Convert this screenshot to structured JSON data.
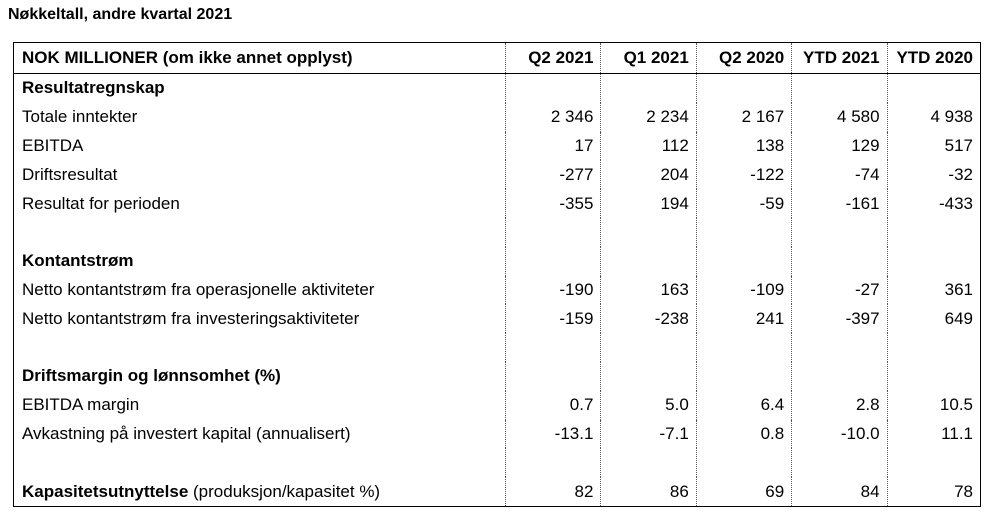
{
  "title": "Nøkkeltall, andre kvartal 2021",
  "header": {
    "label": "NOK MILLIONER (om ikke annet opplyst)",
    "columns": [
      "Q2 2021",
      "Q1 2021",
      "Q2 2020",
      "YTD 2021",
      "YTD 2020"
    ]
  },
  "sections": {
    "resultat": {
      "heading": "Resultatregnskap",
      "rows": [
        {
          "label": "Totale inntekter",
          "values": [
            "2 346",
            "2 234",
            "2 167",
            "4 580",
            "4 938"
          ]
        },
        {
          "label": "EBITDA",
          "values": [
            "17",
            "112",
            "138",
            "129",
            "517"
          ]
        },
        {
          "label": "Driftsresultat",
          "values": [
            "-277",
            "204",
            "-122",
            "-74",
            "-32"
          ]
        },
        {
          "label": "Resultat for perioden",
          "values": [
            "-355",
            "194",
            "-59",
            "-161",
            "-433"
          ]
        }
      ]
    },
    "kontantstrom": {
      "heading": "Kontantstrøm",
      "rows": [
        {
          "label": "Netto kontantstrøm fra operasjonelle aktiviteter",
          "values": [
            "-190",
            "163",
            "-109",
            "-27",
            "361"
          ]
        },
        {
          "label": "Netto kontantstrøm fra investeringsaktiviteter",
          "values": [
            "-159",
            "-238",
            "241",
            "-397",
            "649"
          ]
        }
      ]
    },
    "margin": {
      "heading": "Driftsmargin og lønnsomhet (%)",
      "rows": [
        {
          "label": "EBITDA margin",
          "values": [
            "0.7",
            "5.0",
            "6.4",
            "2.8",
            "10.5"
          ]
        },
        {
          "label": "Avkastning på investert kapital (annualisert)",
          "values": [
            "-13.1",
            "-7.1",
            "0.8",
            "-10.0",
            "11.1"
          ]
        }
      ]
    },
    "kapasitet": {
      "label_bold": "Kapasitetsutnyttelse",
      "label_rest": " (produksjon/kapasitet %)",
      "values": [
        "82",
        "86",
        "69",
        "84",
        "78"
      ]
    }
  }
}
